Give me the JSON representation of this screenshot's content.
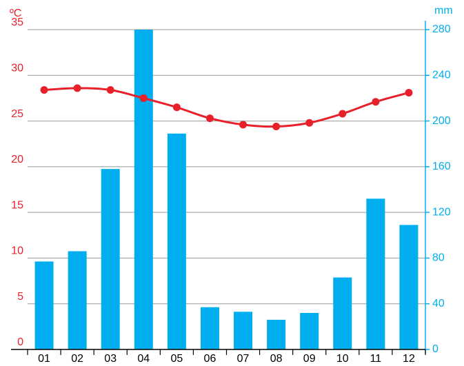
{
  "chart_data": {
    "type": "bar-line",
    "y_label": "ºC",
    "y2_label": "mm",
    "categories": [
      "01",
      "02",
      "03",
      "04",
      "05",
      "06",
      "07",
      "08",
      "09",
      "10",
      "11",
      "12"
    ],
    "series": [
      {
        "type": "bar",
        "axis": "y2",
        "color": "#00aeef",
        "values": [
          77,
          86,
          158,
          280,
          189,
          37,
          33,
          26,
          32,
          63,
          132,
          109
        ]
      },
      {
        "type": "line",
        "axis": "y",
        "color": "#e8202a",
        "values": [
          28.4,
          28.6,
          28.4,
          27.5,
          26.5,
          25.3,
          24.6,
          24.4,
          24.8,
          25.8,
          27.1,
          28.1
        ]
      }
    ],
    "ylim": [
      0,
      35
    ],
    "yticks": [
      0,
      5,
      10,
      15,
      20,
      25,
      30,
      35
    ],
    "y2lim": [
      0,
      280
    ],
    "y2ticks": [
      0,
      40,
      80,
      120,
      160,
      200,
      240,
      280
    ],
    "grid": true
  }
}
